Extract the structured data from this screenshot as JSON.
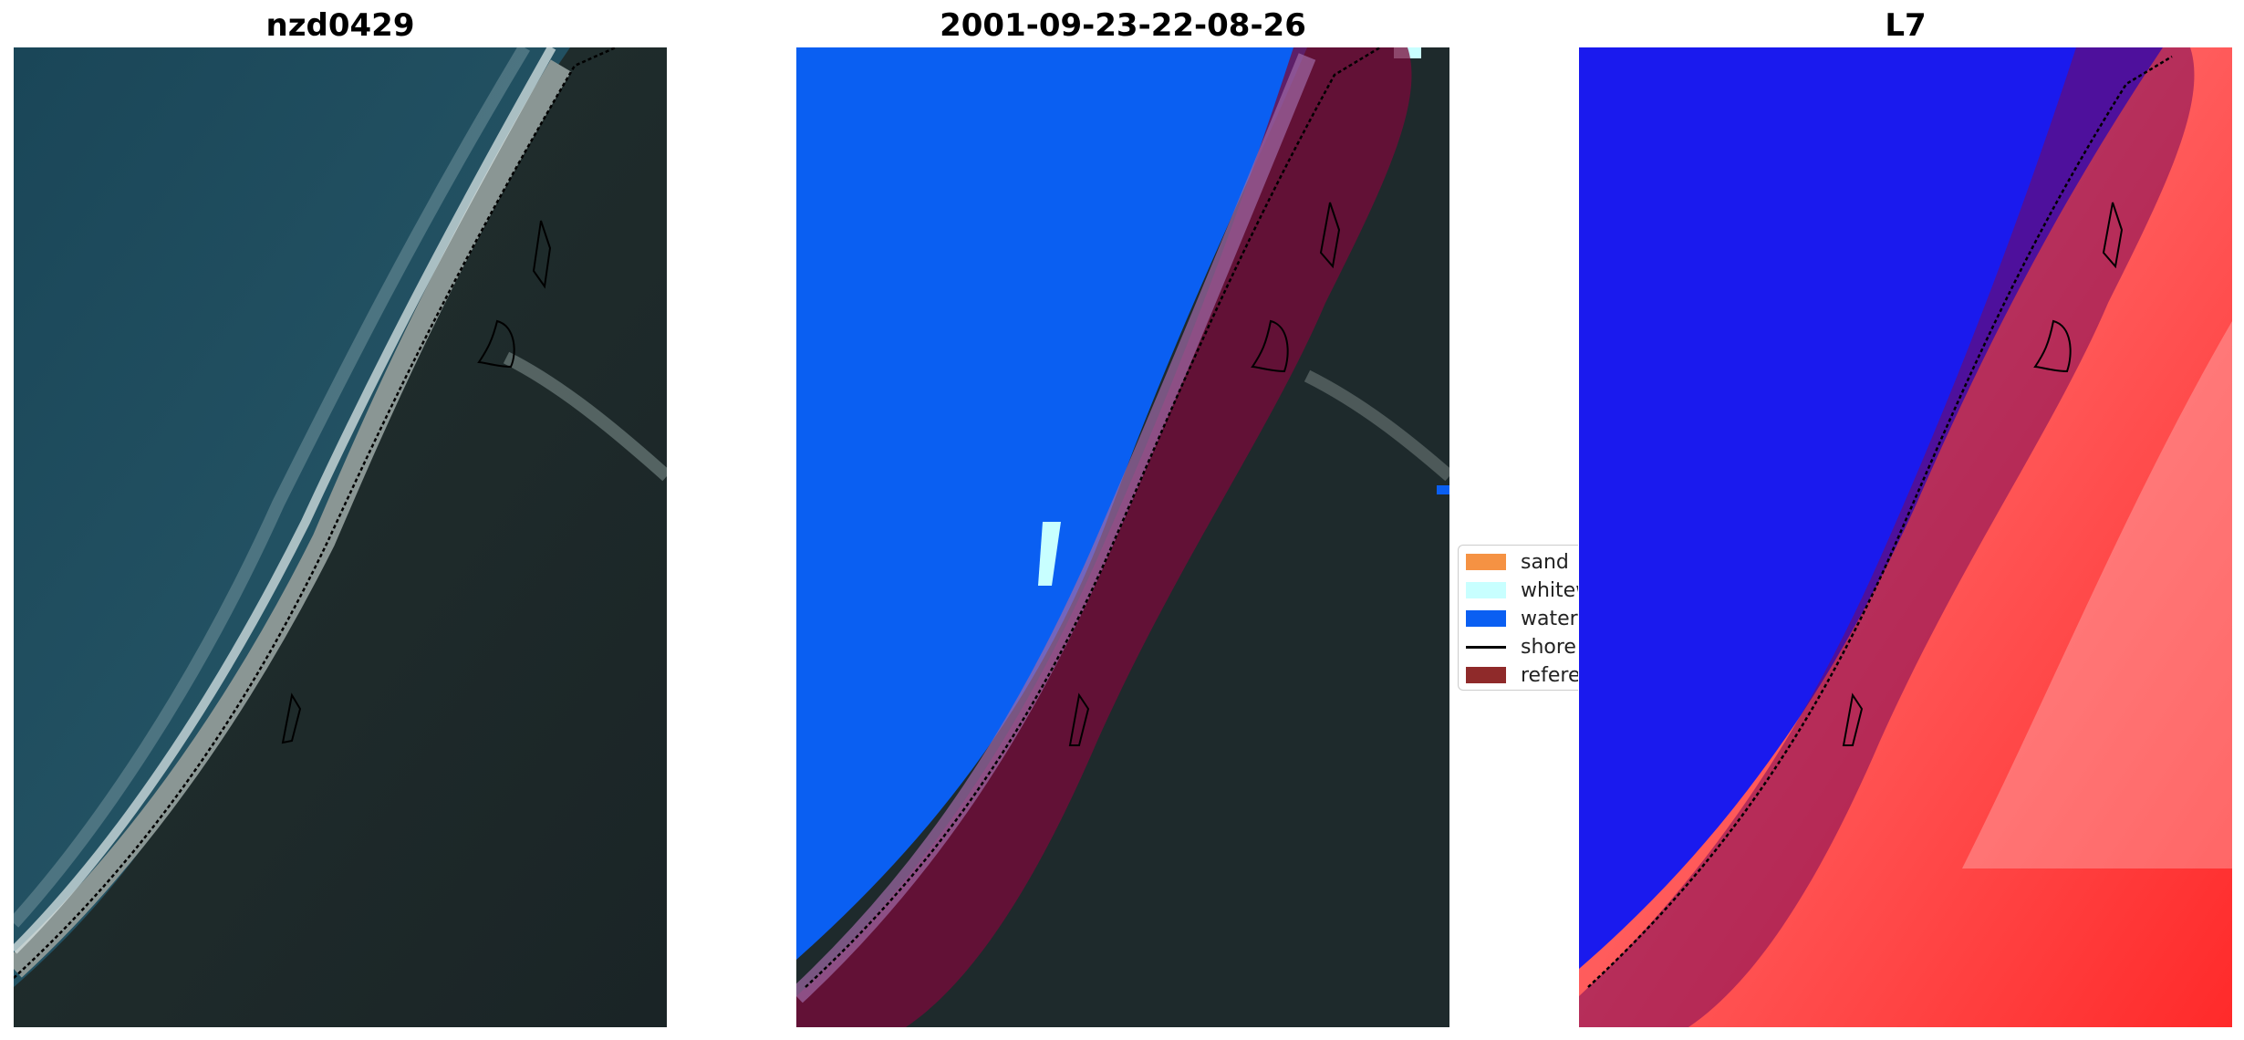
{
  "panels": [
    {
      "title": "nzd0429",
      "kind": "rgb-image"
    },
    {
      "title": "2001-09-23-22-08-26",
      "kind": "classified-image"
    },
    {
      "title": "L7",
      "kind": "index-image"
    }
  ],
  "legend": {
    "items": [
      {
        "label": "sand",
        "type": "patch",
        "color": "#f59243"
      },
      {
        "label": "whitewater",
        "type": "patch",
        "color": "#c8ffff"
      },
      {
        "label": "water",
        "type": "patch",
        "color": "#0a5ff2"
      },
      {
        "label": "shoreline",
        "type": "line",
        "color": "#000000"
      },
      {
        "label": "reference",
        "type": "patch",
        "color": "#8f2a2a"
      }
    ]
  },
  "colors": {
    "ocean": "#1c4a5c",
    "land": "#1d2a2c",
    "water_class": "#0a5ff2",
    "buffer_overlay": "#7a0a3a",
    "index_water": "#1a1aee",
    "index_land": "#ff5050"
  }
}
